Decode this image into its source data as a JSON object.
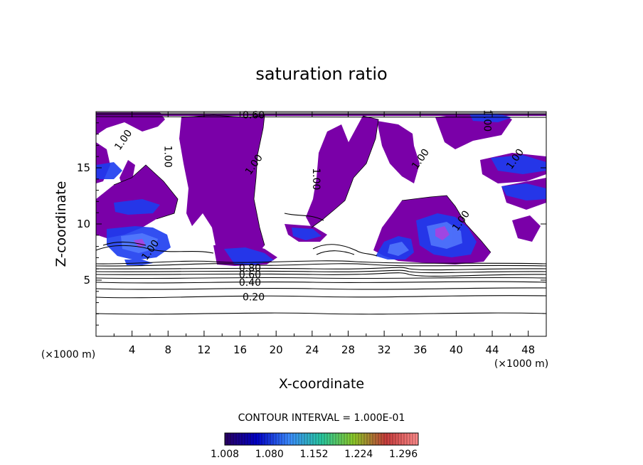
{
  "chart_data": {
    "type": "heatmap",
    "title": "saturation ratio",
    "xlabel": "X-coordinate",
    "ylabel": "Z-coordinate",
    "x_unit": "(×1000 m)",
    "y_unit": "(×1000 m)",
    "xlim": [
      0,
      50
    ],
    "ylim": [
      0,
      20
    ],
    "x_ticks": [
      4,
      8,
      12,
      16,
      20,
      24,
      28,
      32,
      36,
      40,
      44,
      48
    ],
    "y_ticks": [
      5,
      10,
      15
    ],
    "contour_interval_text": "CONTOUR INTERVAL = 1.000E-01",
    "contour_labels": [
      {
        "text": "0.20",
        "x": 17.5,
        "y": 3.5
      },
      {
        "text": "0.40",
        "x": 17.1,
        "y": 4.8
      },
      {
        "text": "0.60",
        "x": 17.1,
        "y": 5.5
      },
      {
        "text": "0.80",
        "x": 17.1,
        "y": 6.1
      },
      {
        "text": "0.60",
        "x": 17.5,
        "y": 19.7
      },
      {
        "text": "1.00",
        "x": 3,
        "y": 17.5
      },
      {
        "text": "1.00",
        "x": 8,
        "y": 16
      },
      {
        "text": "1.00",
        "x": 17.5,
        "y": 15.3
      },
      {
        "text": "1.00",
        "x": 24.5,
        "y": 14
      },
      {
        "text": "1.00",
        "x": 36,
        "y": 15.8
      },
      {
        "text": "1.00",
        "x": 40.5,
        "y": 10.3
      },
      {
        "text": "1.00",
        "x": 46.5,
        "y": 15.8
      },
      {
        "text": "1.00",
        "x": 43.5,
        "y": 19.2
      },
      {
        "text": "1.00",
        "x": 6,
        "y": 7.7
      }
    ],
    "colorbar": {
      "min": 1.008,
      "max": 1.32,
      "tick_labels": [
        "1.008",
        "1.080",
        "1.152",
        "1.224",
        "1.296"
      ],
      "colors": [
        "#2a0060",
        "#0000c8",
        "#3c8cff",
        "#28c8a0",
        "#8cc828",
        "#c83c3c",
        "#ff8c8c"
      ]
    }
  }
}
